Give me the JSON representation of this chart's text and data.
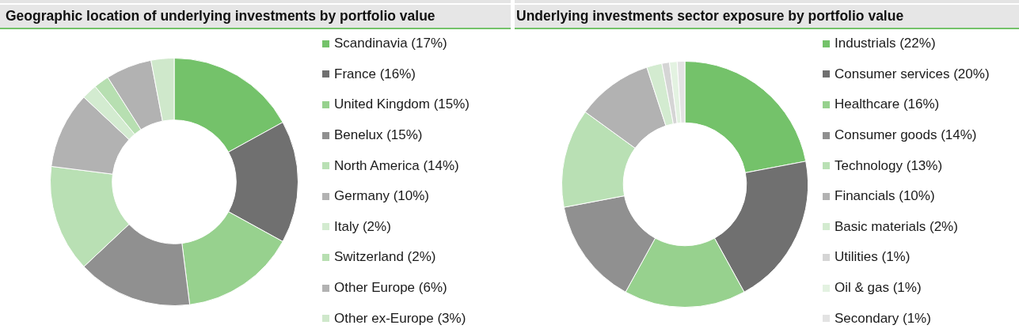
{
  "chart_data": [
    {
      "type": "donut",
      "title": "Geographic location of underlying investments by portfolio value",
      "categories": [
        "Scandinavia (17%)",
        "France (16%)",
        "United Kingdom (15%)",
        "Benelux (15%)",
        "North America (14%)",
        "Germany (10%)",
        "Italy (2%)",
        "Switzerland (2%)",
        "Other Europe (6%)",
        "Other ex-Europe (3%)"
      ],
      "values": [
        17,
        16,
        15,
        15,
        14,
        10,
        2,
        2,
        6,
        3
      ],
      "colors": [
        "#74c26a",
        "#707070",
        "#97d18e",
        "#909090",
        "#b9e0b4",
        "#b2b2b2",
        "#d3ebd0",
        "#b7dfb1",
        "#b2b2b2",
        "#cfe8cb"
      ],
      "legend": "right"
    },
    {
      "type": "donut",
      "title": "Underlying investments sector exposure by portfolio value",
      "categories": [
        "Industrials (22%)",
        "Consumer services (20%)",
        "Healthcare (16%)",
        "Consumer goods (14%)",
        "Technology (13%)",
        "Financials (10%)",
        "Basic materials (2%)",
        "Utilities (1%)",
        "Oil & gas (1%)",
        "Secondary (1%)"
      ],
      "values": [
        22,
        20,
        16,
        14,
        13,
        10,
        2,
        1,
        1,
        1
      ],
      "colors": [
        "#74c26a",
        "#707070",
        "#97d18e",
        "#909090",
        "#b9e0b4",
        "#b2b2b2",
        "#d3ebd0",
        "#d5d5d5",
        "#e3f2e1",
        "#e3e3e3"
      ],
      "legend": "right"
    }
  ]
}
